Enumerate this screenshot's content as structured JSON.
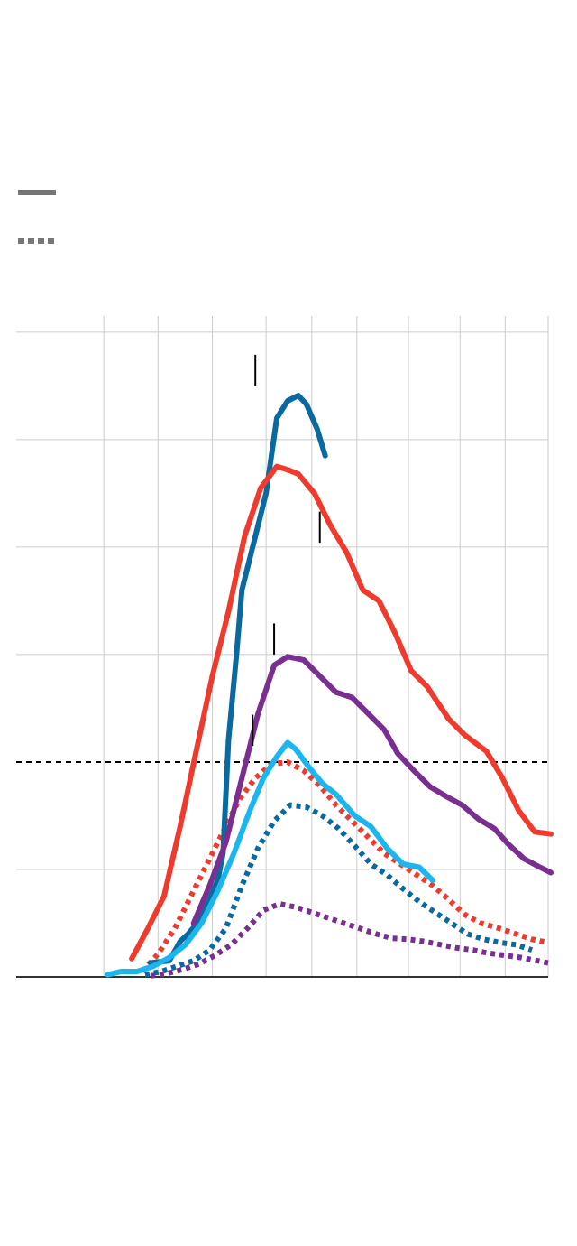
{
  "legend": {
    "solid": {
      "swatch_color": "#767676",
      "style": "solid"
    },
    "dotted": {
      "swatch_color": "#767676",
      "style": "dotted"
    }
  },
  "chart_data": {
    "type": "line",
    "title": "",
    "xlabel": "",
    "ylabel": "",
    "xlim": [
      -1.0,
      8.9
    ],
    "ylim": [
      0,
      6.15
    ],
    "x_gridlines": [
      0.63,
      1.64,
      2.65,
      3.65,
      4.5,
      5.34,
      6.3,
      7.26,
      8.1,
      8.9
    ],
    "y_gridlines": [
      1,
      3,
      4,
      5,
      6
    ],
    "reference_line": {
      "y": 2,
      "style": "dashed",
      "color": "#000000"
    },
    "grid": true,
    "axis_baseline": true,
    "series": [
      {
        "color": "#0a6aa0",
        "style": "solid",
        "x": [
          1.5,
          1.85,
          2.05,
          2.2,
          2.45,
          2.75,
          2.85,
          2.95,
          3.1,
          3.2,
          3.45,
          3.65,
          3.85,
          4.05,
          4.25,
          4.4,
          4.6,
          4.75
        ],
        "y": [
          0.13,
          0.15,
          0.33,
          0.4,
          0.55,
          0.9,
          1.15,
          2.2,
          3.0,
          3.6,
          4.1,
          4.5,
          5.2,
          5.36,
          5.41,
          5.33,
          5.1,
          4.85
        ]
      },
      {
        "color": "#ee3b2e",
        "style": "solid",
        "x": [
          1.15,
          1.45,
          1.75,
          2.05,
          2.35,
          2.65,
          2.95,
          3.25,
          3.55,
          3.85,
          4.05,
          4.25,
          4.55,
          4.85,
          5.15,
          5.45,
          5.75,
          6.05,
          6.35,
          6.65,
          7.05,
          7.35,
          7.75,
          8.05,
          8.35,
          8.65,
          8.95
        ],
        "y": [
          0.17,
          0.45,
          0.75,
          1.4,
          2.1,
          2.8,
          3.4,
          4.1,
          4.55,
          4.75,
          4.72,
          4.68,
          4.5,
          4.2,
          3.95,
          3.6,
          3.5,
          3.2,
          2.85,
          2.7,
          2.4,
          2.25,
          2.1,
          1.85,
          1.55,
          1.35,
          1.33
        ]
      },
      {
        "color": "#7a2e90",
        "style": "solid",
        "x": [
          2.3,
          2.6,
          2.9,
          3.2,
          3.5,
          3.8,
          4.05,
          4.35,
          4.65,
          4.95,
          5.25,
          5.55,
          5.85,
          6.1,
          6.4,
          6.7,
          7.0,
          7.3,
          7.6,
          7.9,
          8.15,
          8.45,
          8.75,
          8.95
        ],
        "y": [
          0.5,
          0.85,
          1.25,
          1.85,
          2.45,
          2.9,
          2.98,
          2.95,
          2.8,
          2.65,
          2.6,
          2.45,
          2.3,
          2.08,
          1.92,
          1.77,
          1.68,
          1.6,
          1.47,
          1.38,
          1.24,
          1.1,
          1.02,
          0.97
        ]
      },
      {
        "color": "#1cb6ef",
        "style": "solid",
        "x": [
          0.7,
          0.95,
          1.25,
          1.55,
          1.85,
          2.15,
          2.45,
          2.75,
          3.05,
          3.35,
          3.6,
          3.85,
          4.05,
          4.2,
          4.45,
          4.7,
          4.95,
          5.3,
          5.6,
          5.9,
          6.2,
          6.5,
          6.75
        ],
        "y": [
          0.02,
          0.05,
          0.05,
          0.1,
          0.18,
          0.3,
          0.5,
          0.8,
          1.15,
          1.55,
          1.85,
          2.05,
          2.18,
          2.12,
          1.95,
          1.8,
          1.7,
          1.5,
          1.4,
          1.2,
          1.05,
          1.02,
          0.9
        ]
      },
      {
        "color": "#ee3b2e",
        "style": "dotted",
        "x": [
          1.35,
          1.65,
          1.95,
          2.25,
          2.55,
          2.85,
          3.15,
          3.45,
          3.75,
          4.05,
          4.35,
          4.65,
          4.95,
          5.25,
          5.55,
          5.85,
          6.15,
          6.45,
          6.75,
          7.05,
          7.35,
          7.65,
          8.0,
          8.3,
          8.6,
          8.9
        ],
        "y": [
          0.05,
          0.22,
          0.45,
          0.75,
          1.05,
          1.35,
          1.65,
          1.85,
          1.98,
          2.0,
          1.92,
          1.78,
          1.6,
          1.45,
          1.3,
          1.15,
          1.05,
          0.95,
          0.85,
          0.72,
          0.58,
          0.5,
          0.45,
          0.4,
          0.35,
          0.32
        ]
      },
      {
        "color": "#0a6aa0",
        "style": "dotted",
        "x": [
          1.4,
          1.7,
          2.0,
          2.3,
          2.6,
          2.9,
          3.2,
          3.5,
          3.8,
          4.1,
          4.4,
          4.7,
          5.0,
          5.3,
          5.6,
          5.9,
          6.2,
          6.5,
          6.8,
          7.1,
          7.4,
          7.7,
          8.0,
          8.3,
          8.6
        ],
        "y": [
          0.02,
          0.05,
          0.1,
          0.15,
          0.25,
          0.45,
          0.85,
          1.2,
          1.45,
          1.6,
          1.58,
          1.5,
          1.38,
          1.22,
          1.05,
          0.95,
          0.82,
          0.7,
          0.6,
          0.5,
          0.4,
          0.35,
          0.32,
          0.3,
          0.25
        ]
      },
      {
        "color": "#7a2e90",
        "style": "dotted",
        "x": [
          1.5,
          1.8,
          2.1,
          2.4,
          2.7,
          3.0,
          3.3,
          3.6,
          3.9,
          4.2,
          4.5,
          4.8,
          5.1,
          5.4,
          5.7,
          6.0,
          6.3,
          6.6,
          6.9,
          7.2,
          7.5,
          7.8,
          8.1,
          8.4,
          8.7,
          8.9
        ],
        "y": [
          0.01,
          0.03,
          0.07,
          0.12,
          0.2,
          0.3,
          0.45,
          0.62,
          0.68,
          0.65,
          0.6,
          0.55,
          0.5,
          0.45,
          0.4,
          0.36,
          0.35,
          0.33,
          0.3,
          0.27,
          0.25,
          0.22,
          0.2,
          0.18,
          0.15,
          0.13
        ]
      }
    ],
    "markers": [
      {
        "x": 3.45,
        "y_from": 5.5,
        "y_to": 5.79
      },
      {
        "x": 4.65,
        "y_from": 4.04,
        "y_to": 4.33
      },
      {
        "x": 3.8,
        "y_from": 3.0,
        "y_to": 3.29
      },
      {
        "x": 3.4,
        "y_from": 2.15,
        "y_to": 2.44
      }
    ]
  }
}
